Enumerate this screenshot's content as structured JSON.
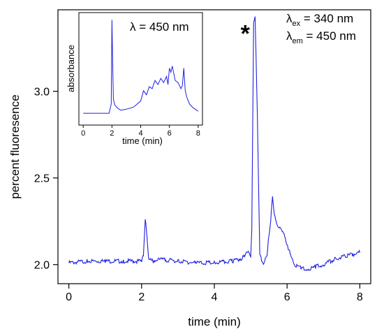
{
  "chart_data": [
    {
      "id": "main",
      "type": "line",
      "title": "",
      "xlabel": "time (min)",
      "ylabel": "percent fluoresence",
      "xlim": [
        -0.3,
        8.3
      ],
      "ylim": [
        1.89,
        3.47
      ],
      "x_ticks": [
        0,
        2,
        4,
        6,
        8
      ],
      "x_tick_labels": [
        "0",
        "2",
        "4",
        "6",
        "8"
      ],
      "y_ticks": [
        2.0,
        2.5,
        3.0
      ],
      "y_tick_labels": [
        "2.0",
        "2.5",
        "3.0"
      ],
      "grid": false,
      "line_color": "#1f1fe0",
      "series": [
        {
          "x": [
            0.0,
            0.5,
            1.0,
            1.5,
            2.0,
            2.05,
            2.1,
            2.15,
            2.2,
            2.3,
            2.5,
            3.0,
            3.5,
            4.0,
            4.5,
            4.8,
            4.9,
            4.95,
            5.0,
            5.03,
            5.08,
            5.12,
            5.18,
            5.25,
            5.35,
            5.45,
            5.5,
            5.55,
            5.6,
            5.65,
            5.75,
            5.9,
            6.0,
            6.1,
            6.2,
            6.4,
            6.6,
            6.8,
            7.0,
            7.3,
            7.6,
            8.0
          ],
          "y": [
            2.01,
            2.02,
            2.02,
            2.02,
            2.02,
            2.05,
            2.27,
            2.15,
            2.03,
            2.02,
            2.03,
            2.02,
            2.01,
            2.01,
            2.02,
            2.04,
            2.08,
            2.06,
            2.05,
            2.2,
            3.4,
            3.43,
            2.9,
            2.05,
            2.01,
            2.05,
            2.17,
            2.25,
            2.4,
            2.28,
            2.22,
            2.18,
            2.12,
            2.05,
            2.0,
            1.98,
            1.97,
            1.99,
            2.0,
            2.03,
            2.05,
            2.07
          ]
        }
      ],
      "annotations": [
        {
          "text": "*",
          "color": "#e0202a",
          "x": 4.85,
          "y": 3.36
        }
      ],
      "legend_text": {
        "line1": {
          "symbol": "λ",
          "sub": "ex",
          "rest": " = 340 nm"
        },
        "line2": {
          "symbol": "λ",
          "sub": "em",
          "rest": " = 450 nm"
        }
      }
    },
    {
      "id": "inset",
      "type": "line",
      "title": "",
      "xlabel": "time (min)",
      "ylabel": "absorbance",
      "xlim": [
        -0.3,
        8.3
      ],
      "ylim": [
        0,
        1
      ],
      "x_ticks": [
        0,
        2,
        4,
        6,
        8
      ],
      "x_tick_labels": [
        "0",
        "2",
        "4",
        "6",
        "8"
      ],
      "grid": false,
      "line_color": "#1f1fe0",
      "annotation": {
        "symbol": "λ",
        "rest": " = 450 nm"
      },
      "series": [
        {
          "x": [
            0.0,
            0.5,
            1.0,
            1.5,
            1.8,
            1.95,
            2.0,
            2.05,
            2.1,
            2.2,
            2.4,
            2.6,
            3.0,
            3.5,
            4.0,
            4.2,
            4.4,
            4.6,
            4.8,
            5.0,
            5.2,
            5.4,
            5.6,
            5.8,
            5.9,
            6.0,
            6.1,
            6.2,
            6.4,
            6.6,
            6.8,
            6.9,
            7.0,
            7.1,
            7.2,
            7.4,
            7.6,
            7.8,
            8.0
          ],
          "y": [
            0.06,
            0.06,
            0.06,
            0.06,
            0.06,
            0.15,
            0.97,
            0.55,
            0.2,
            0.14,
            0.11,
            0.09,
            0.1,
            0.12,
            0.18,
            0.28,
            0.24,
            0.32,
            0.3,
            0.38,
            0.34,
            0.4,
            0.36,
            0.42,
            0.34,
            0.5,
            0.46,
            0.52,
            0.38,
            0.36,
            0.3,
            0.33,
            0.5,
            0.28,
            0.22,
            0.15,
            0.12,
            0.1,
            0.08
          ]
        }
      ]
    }
  ]
}
